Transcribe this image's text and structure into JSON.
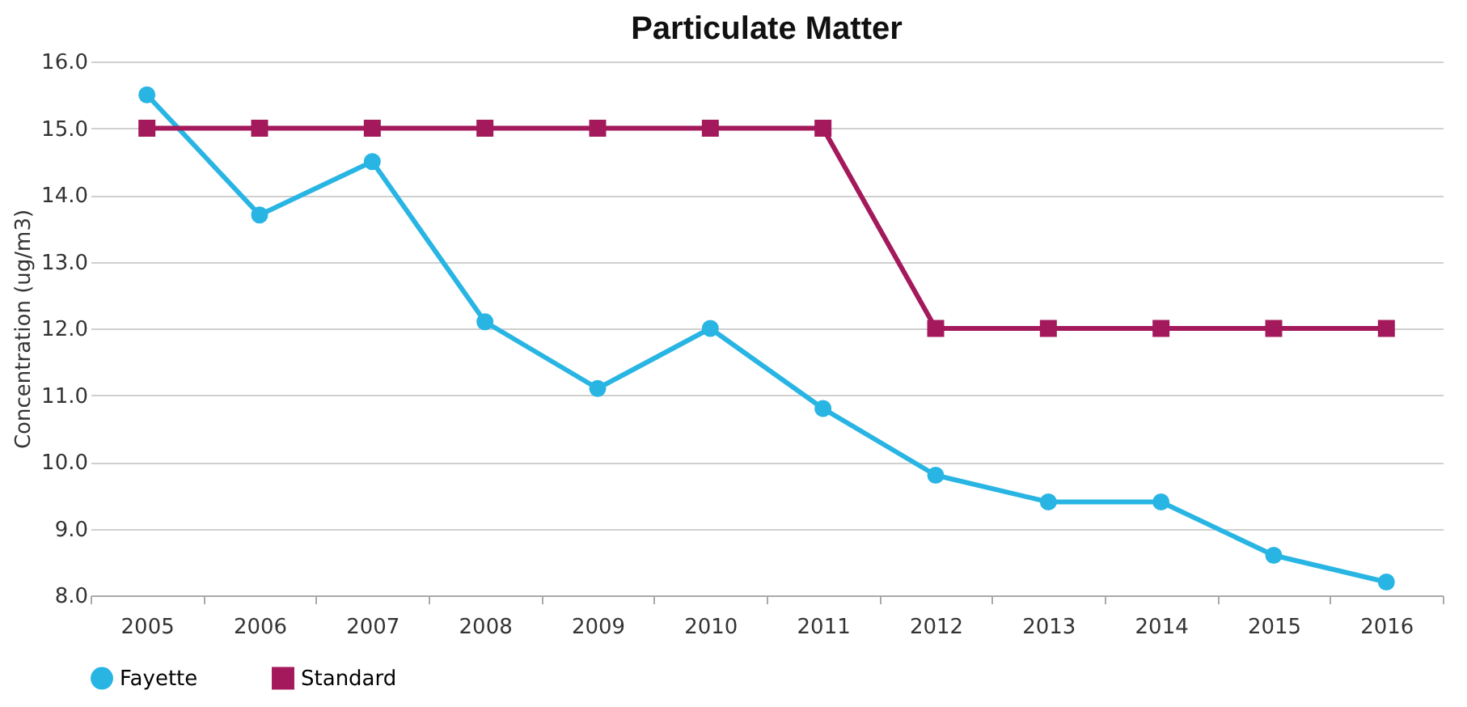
{
  "chart_data": {
    "type": "line",
    "title": "Particulate Matter",
    "ylabel": "Concentration (ug/m3)",
    "categories": [
      "2005",
      "2006",
      "2007",
      "2008",
      "2009",
      "2010",
      "2011",
      "2012",
      "2013",
      "2014",
      "2015",
      "2016"
    ],
    "series": [
      {
        "name": "Fayette",
        "color": "#29b5e3",
        "marker": "circle",
        "values": [
          15.5,
          13.7,
          14.5,
          12.1,
          11.1,
          12.0,
          10.8,
          9.8,
          9.4,
          9.4,
          8.6,
          8.2
        ]
      },
      {
        "name": "Standard",
        "color": "#a3195b",
        "marker": "square",
        "values": [
          15,
          15,
          15,
          15,
          15,
          15,
          15,
          12,
          12,
          12,
          12,
          12
        ]
      }
    ],
    "ylim": [
      8,
      16
    ],
    "yticks": [
      {
        "value": 8,
        "label": "8.0"
      },
      {
        "value": 9,
        "label": "9.0"
      },
      {
        "value": 10,
        "label": "10.0"
      },
      {
        "value": 11,
        "label": "11.0"
      },
      {
        "value": 12,
        "label": "12.0"
      },
      {
        "value": 13,
        "label": "13.0"
      },
      {
        "value": 14,
        "label": "14.0"
      },
      {
        "value": 15,
        "label": "15.0"
      },
      {
        "value": 16,
        "label": "16.0"
      }
    ],
    "grid": "y",
    "legend": "bottom",
    "line_style": "solid"
  }
}
